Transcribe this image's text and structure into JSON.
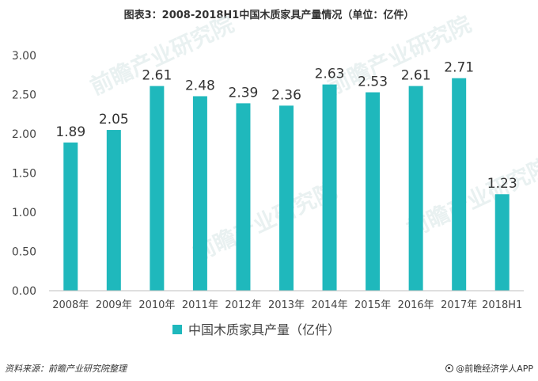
{
  "title": "图表3：2008-2018H1中国木质家具产量情况（单位：亿件）",
  "chart_data": {
    "type": "bar",
    "categories": [
      "2008年",
      "2009年",
      "2010年",
      "2011年",
      "2012年",
      "2013年",
      "2014年",
      "2015年",
      "2016年",
      "2017年",
      "2018H1"
    ],
    "series": [
      {
        "name": "中国木质家具产量（亿件）",
        "values": [
          1.89,
          2.05,
          2.61,
          2.48,
          2.39,
          2.36,
          2.63,
          2.53,
          2.61,
          2.71,
          1.23
        ],
        "color": "#1fb8bc"
      }
    ],
    "ylim": [
      0,
      3.0
    ],
    "yticks": [
      "0.00",
      "0.50",
      "1.00",
      "1.50",
      "2.00",
      "2.50",
      "3.00"
    ],
    "grid": false,
    "legend": "bottom-center",
    "data_labels": [
      "1.89",
      "2.05",
      "2.61",
      "2.48",
      "2.39",
      "2.36",
      "2.63",
      "2.53",
      "2.61",
      "2.71",
      "1.23"
    ]
  },
  "footer": {
    "source": "资料来源：前瞻产业研究院整理",
    "brand": "@前瞻经济学人APP"
  },
  "watermark": "前瞻产业研究院"
}
